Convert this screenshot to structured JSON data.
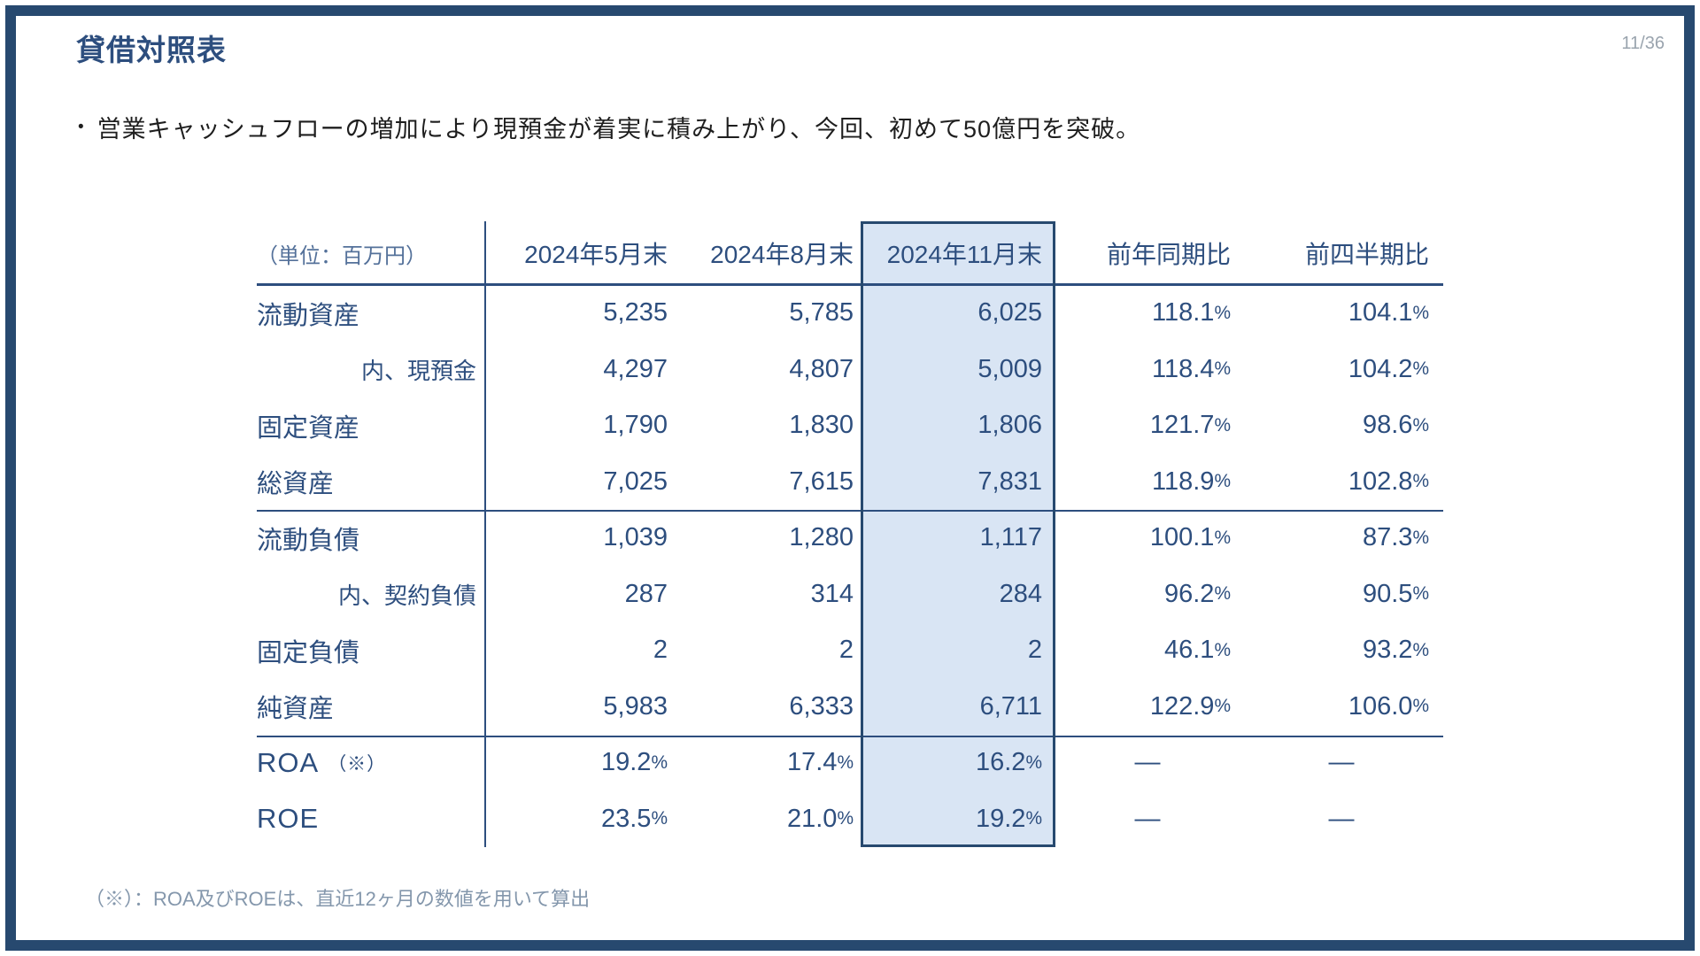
{
  "page": {
    "title": "貸借対照表",
    "page_number": "11/36",
    "bullet_marker": "•",
    "bullet": "営業キャッシュフローの増加により現預金が着実に積み上がり、今回、初めて50億円を突破。",
    "footnote": "（※）：ROA及びROEは、直近12ヶ月の数値を用いて算出"
  },
  "colors": {
    "frame": "#27496f",
    "table_text": "#2d4e7e",
    "highlight_fill": "#d9e5f4",
    "muted_blue": "#8497ac",
    "muted_gray": "#9aa4ae"
  },
  "table": {
    "unit_label": "（単位：百万円）",
    "columns": [
      "2024年5月末",
      "2024年8月末",
      "2024年11月末",
      "前年同期比",
      "前四半期比"
    ],
    "highlighted_column": "2024年11月末",
    "rows": [
      {
        "label": "流動資産",
        "values": [
          "5,235",
          "5,785",
          "6,025",
          "118.1%",
          "104.1%"
        ]
      },
      {
        "label": "内、現預金",
        "indent": true,
        "values": [
          "4,297",
          "4,807",
          "5,009",
          "118.4%",
          "104.2%"
        ]
      },
      {
        "label": "固定資産",
        "values": [
          "1,790",
          "1,830",
          "1,806",
          "121.7%",
          "98.6%"
        ]
      },
      {
        "label": "総資産",
        "values": [
          "7,025",
          "7,615",
          "7,831",
          "118.9%",
          "102.8%"
        ]
      },
      {
        "label": "流動負債",
        "values": [
          "1,039",
          "1,280",
          "1,117",
          "100.1%",
          "87.3%"
        ]
      },
      {
        "label": "内、契約負債",
        "indent": true,
        "values": [
          "287",
          "314",
          "284",
          "96.2%",
          "90.5%"
        ]
      },
      {
        "label": "固定負債",
        "values": [
          "2",
          "2",
          "2",
          "46.1%",
          "93.2%"
        ]
      },
      {
        "label": "純資産",
        "values": [
          "5,983",
          "6,333",
          "6,711",
          "122.9%",
          "106.0%"
        ]
      },
      {
        "label": "ROA",
        "note": "（※）",
        "values": [
          "19.2%",
          "17.4%",
          "16.2%",
          "—",
          "—"
        ]
      },
      {
        "label": "ROE",
        "values": [
          "23.5%",
          "21.0%",
          "19.2%",
          "—",
          "—"
        ]
      }
    ]
  }
}
